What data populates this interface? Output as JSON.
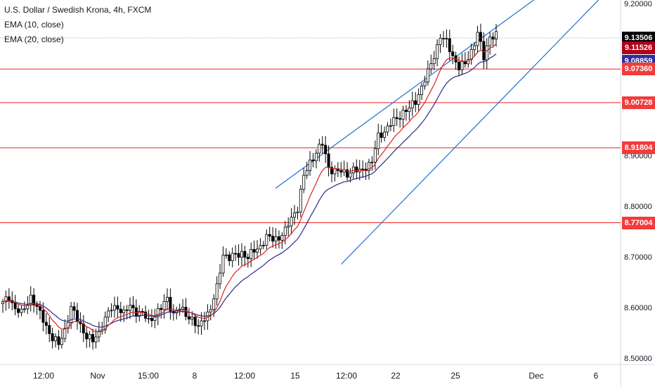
{
  "legend": {
    "symbol": "U.S. Dollar / Swedish Krona, 4h, FXCM",
    "ema1": "EMA (10, close)",
    "ema2": "EMA (20, close)"
  },
  "colors": {
    "up_candle": "#ffffff",
    "down_candle": "#000000",
    "wick": "#000000",
    "ema10": "#e01f1f",
    "ema20": "#2b2a85",
    "channel": "#1e6fd0",
    "hline": "#ef1f1f",
    "last_tag": "#000000",
    "ema10_tag": "#b0001a",
    "ema20_tag": "#2b2fa0",
    "level_tag": "#f23b3b",
    "current_dotted": "#9aa0a6"
  },
  "chart_data": {
    "type": "candlestick",
    "title": "U.S. Dollar / Swedish Krona, 4h, FXCM",
    "ylim": [
      8.49,
      9.21
    ],
    "y_ticks": [
      "9.20000",
      "8.90000",
      "8.80000",
      "8.70000",
      "8.60000",
      "8.50000"
    ],
    "x_ticks": [
      "12:00",
      "Nov",
      "15:00",
      "8",
      "12:00",
      "15",
      "12:00",
      "22",
      "25",
      "Dec",
      "6"
    ],
    "horizontal_levels": [
      9.0736,
      9.00728,
      8.91804,
      8.77004
    ],
    "price_labels": [
      {
        "key": "last",
        "value": "9.13506"
      },
      {
        "key": "ema10",
        "value": "9.11526"
      },
      {
        "key": "ema20",
        "value": "9.08859"
      },
      {
        "key": "level",
        "value": "9.07360"
      },
      {
        "key": "level",
        "value": "9.00728"
      },
      {
        "key": "level",
        "value": "8.91804"
      },
      {
        "key": "level",
        "value": "8.77004"
      }
    ],
    "channel": {
      "upper": [
        [
          0,
          8.838
        ],
        [
          24,
          9.217
        ]
      ],
      "lower": [
        [
          6,
          8.688
        ],
        [
          30,
          9.222
        ]
      ]
    },
    "indicators": [
      "EMA (10, close)",
      "EMA (20, close)"
    ],
    "close_path_points": [
      [
        0,
        8.61
      ],
      [
        2,
        8.625
      ],
      [
        4,
        8.6
      ],
      [
        6,
        8.59
      ],
      [
        9,
        8.625
      ],
      [
        11,
        8.6
      ],
      [
        13,
        8.58
      ],
      [
        16,
        8.54
      ],
      [
        18,
        8.53
      ],
      [
        20,
        8.56
      ],
      [
        22,
        8.6
      ],
      [
        24,
        8.58
      ],
      [
        27,
        8.545
      ],
      [
        29,
        8.535
      ],
      [
        31,
        8.555
      ],
      [
        33,
        8.58
      ],
      [
        35,
        8.6
      ],
      [
        37,
        8.605
      ],
      [
        39,
        8.59
      ],
      [
        41,
        8.605
      ],
      [
        43,
        8.595
      ],
      [
        45,
        8.59
      ],
      [
        47,
        8.575
      ],
      [
        49,
        8.59
      ],
      [
        51,
        8.6
      ],
      [
        53,
        8.62
      ],
      [
        55,
        8.59
      ],
      [
        57,
        8.6
      ],
      [
        59,
        8.59
      ],
      [
        61,
        8.58
      ],
      [
        63,
        8.56
      ],
      [
        65,
        8.585
      ],
      [
        67,
        8.6
      ],
      [
        69,
        8.64
      ],
      [
        71,
        8.71
      ],
      [
        73,
        8.7
      ],
      [
        75,
        8.705
      ],
      [
        77,
        8.712
      ],
      [
        79,
        8.7
      ],
      [
        81,
        8.715
      ],
      [
        83,
        8.725
      ],
      [
        85,
        8.74
      ],
      [
        87,
        8.738
      ],
      [
        89,
        8.742
      ],
      [
        91,
        8.752
      ],
      [
        93,
        8.78
      ],
      [
        95,
        8.8
      ],
      [
        97,
        8.86
      ],
      [
        99,
        8.89
      ],
      [
        101,
        8.91
      ],
      [
        103,
        8.925
      ],
      [
        105,
        8.88
      ],
      [
        107,
        8.872
      ],
      [
        109,
        8.87
      ],
      [
        111,
        8.868
      ],
      [
        113,
        8.875
      ],
      [
        115,
        8.87
      ],
      [
        117,
        8.882
      ],
      [
        119,
        8.89
      ],
      [
        121,
        8.94
      ],
      [
        123,
        8.952
      ],
      [
        125,
        8.965
      ],
      [
        127,
        8.975
      ],
      [
        129,
        8.99
      ],
      [
        131,
        8.995
      ],
      [
        133,
        9.01
      ],
      [
        135,
        9.04
      ],
      [
        137,
        9.065
      ],
      [
        139,
        9.1
      ],
      [
        141,
        9.14
      ],
      [
        143,
        9.125
      ],
      [
        145,
        9.1
      ],
      [
        147,
        9.078
      ],
      [
        149,
        9.082
      ],
      [
        151,
        9.11
      ],
      [
        153,
        9.145
      ],
      [
        155,
        9.095
      ],
      [
        157,
        9.14
      ]
    ]
  }
}
